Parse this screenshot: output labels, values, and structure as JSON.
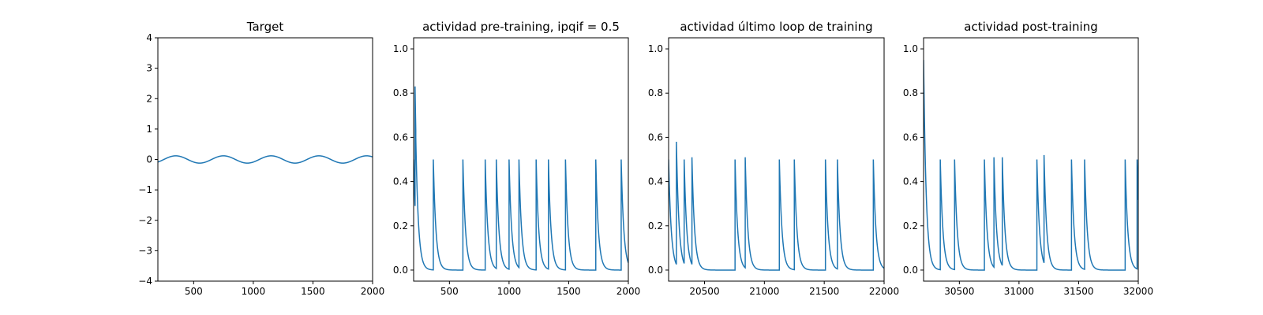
{
  "chart_data": [
    {
      "type": "line",
      "title": "Target",
      "xlim": [
        200,
        2000
      ],
      "ylim": [
        -4,
        4
      ],
      "xticks": [
        500,
        1000,
        1500,
        2000
      ],
      "yticks": [
        -4,
        -3,
        -2,
        -1,
        0,
        1,
        2,
        3,
        4
      ],
      "color": "#1f77b4",
      "series": [
        {
          "kind": "sine",
          "amplitude": 0.12,
          "period": 400,
          "peaks_at": [
            350,
            750,
            1150,
            1550,
            1950
          ],
          "y_at_xmin": -0.06
        }
      ]
    },
    {
      "type": "line",
      "title": "actividad pre-training, ipqif = 0.5",
      "xlim": [
        200,
        2000
      ],
      "ylim": [
        -0.05,
        1.05
      ],
      "xticks": [
        500,
        1000,
        1500,
        2000
      ],
      "yticks": [
        0.0,
        0.2,
        0.4,
        0.6,
        0.8,
        1.0
      ],
      "color": "#1f77b4",
      "series": [
        {
          "kind": "spike_decay",
          "start_value": 0.5,
          "spikes": [
            {
              "x": 212,
              "peak": 0.83
            },
            {
              "x": 218,
              "peak": 0.6
            },
            {
              "x": 365,
              "peak": 0.5
            },
            {
              "x": 613,
              "peak": 0.5
            },
            {
              "x": 800,
              "peak": 0.5
            },
            {
              "x": 893,
              "peak": 0.5
            },
            {
              "x": 1000,
              "peak": 0.5
            },
            {
              "x": 1083,
              "peak": 0.5
            },
            {
              "x": 1227,
              "peak": 0.5
            },
            {
              "x": 1330,
              "peak": 0.5
            },
            {
              "x": 1473,
              "peak": 0.5
            },
            {
              "x": 1727,
              "peak": 0.5
            },
            {
              "x": 1940,
              "peak": 0.5
            }
          ]
        }
      ]
    },
    {
      "type": "line",
      "title": "actividad último loop de training",
      "xlim": [
        20200,
        22000
      ],
      "ylim": [
        -0.05,
        1.05
      ],
      "xticks": [
        20500,
        21000,
        21500,
        22000
      ],
      "yticks": [
        0.0,
        0.2,
        0.4,
        0.6,
        0.8,
        1.0
      ],
      "color": "#1f77b4",
      "series": [
        {
          "kind": "spike_decay",
          "start_value": 0.5,
          "spikes": [
            {
              "x": 20265,
              "peak": 0.58
            },
            {
              "x": 20330,
              "peak": 0.5
            },
            {
              "x": 20395,
              "peak": 0.51
            },
            {
              "x": 20755,
              "peak": 0.5
            },
            {
              "x": 20840,
              "peak": 0.51
            },
            {
              "x": 21125,
              "peak": 0.5
            },
            {
              "x": 21250,
              "peak": 0.5
            },
            {
              "x": 21510,
              "peak": 0.5
            },
            {
              "x": 21610,
              "peak": 0.5
            },
            {
              "x": 21910,
              "peak": 0.5
            }
          ]
        }
      ]
    },
    {
      "type": "line",
      "title": "actividad post-training",
      "xlim": [
        30200,
        32000
      ],
      "ylim": [
        -0.05,
        1.05
      ],
      "xticks": [
        30500,
        31000,
        31500,
        32000
      ],
      "yticks": [
        0.0,
        0.2,
        0.4,
        0.6,
        0.8,
        1.0
      ],
      "color": "#1f77b4",
      "series": [
        {
          "kind": "spike_decay",
          "start_value": 0.95,
          "spikes": [
            {
              "x": 30340,
              "peak": 0.5
            },
            {
              "x": 30460,
              "peak": 0.5
            },
            {
              "x": 30710,
              "peak": 0.5
            },
            {
              "x": 30790,
              "peak": 0.51
            },
            {
              "x": 30860,
              "peak": 0.51
            },
            {
              "x": 31150,
              "peak": 0.5
            },
            {
              "x": 31210,
              "peak": 0.52
            },
            {
              "x": 31440,
              "peak": 0.5
            },
            {
              "x": 31550,
              "peak": 0.5
            },
            {
              "x": 31890,
              "peak": 0.5
            },
            {
              "x": 31990,
              "peak": 0.5
            }
          ]
        }
      ]
    }
  ]
}
